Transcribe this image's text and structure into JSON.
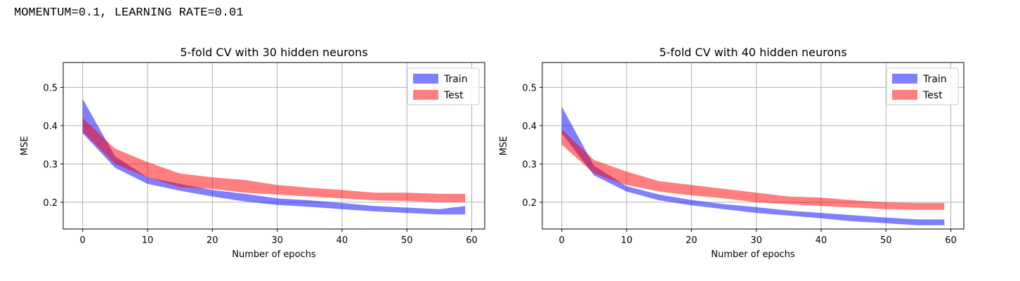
{
  "header": {
    "text": "MOMENTUM=0.1, LEARNING RATE=0.01"
  },
  "chart_data": [
    {
      "type": "area",
      "title": "5-fold CV with 30 hidden neurons",
      "xlabel": "Number of epochs",
      "ylabel": "MSE",
      "xlim": [
        -3,
        62
      ],
      "ylim": [
        0.13,
        0.565
      ],
      "xticks": [
        0,
        10,
        20,
        30,
        40,
        50,
        60
      ],
      "yticks": [
        0.2,
        0.3,
        0.4,
        0.5
      ],
      "ytick_labels": [
        "0.2",
        "0.3",
        "0.4",
        "0.5"
      ],
      "grid": true,
      "legend": "upper right",
      "series": [
        {
          "name": "Train",
          "color": "#0000ff",
          "alpha": 0.5,
          "x": [
            0,
            5,
            10,
            15,
            20,
            25,
            30,
            35,
            40,
            45,
            50,
            55,
            59
          ],
          "lower": [
            0.38,
            0.29,
            0.248,
            0.23,
            0.215,
            0.202,
            0.193,
            0.188,
            0.182,
            0.176,
            0.172,
            0.168,
            0.168
          ],
          "upper": [
            0.47,
            0.32,
            0.265,
            0.248,
            0.232,
            0.222,
            0.21,
            0.205,
            0.198,
            0.19,
            0.186,
            0.182,
            0.19
          ]
        },
        {
          "name": "Test",
          "color": "#ff0000",
          "alpha": 0.5,
          "x": [
            0,
            5,
            10,
            15,
            20,
            25,
            30,
            35,
            40,
            45,
            50,
            55,
            59
          ],
          "lower": [
            0.385,
            0.3,
            0.265,
            0.24,
            0.235,
            0.225,
            0.22,
            0.215,
            0.21,
            0.205,
            0.203,
            0.2,
            0.2
          ],
          "upper": [
            0.42,
            0.34,
            0.305,
            0.275,
            0.265,
            0.258,
            0.245,
            0.238,
            0.232,
            0.225,
            0.225,
            0.222,
            0.222
          ]
        }
      ]
    },
    {
      "type": "area",
      "title": "5-fold CV with 40 hidden neurons",
      "xlabel": "Number of epochs",
      "ylabel": "MSE",
      "xlim": [
        -3,
        62
      ],
      "ylim": [
        0.13,
        0.565
      ],
      "xticks": [
        0,
        10,
        20,
        30,
        40,
        50,
        60
      ],
      "yticks": [
        0.2,
        0.3,
        0.4,
        0.5
      ],
      "ytick_labels": [
        "0.2",
        "0.3",
        "0.4",
        "0.5"
      ],
      "grid": true,
      "legend": "upper right",
      "series": [
        {
          "name": "Train",
          "color": "#0000ff",
          "alpha": 0.5,
          "x": [
            0,
            5,
            10,
            15,
            20,
            25,
            30,
            35,
            40,
            45,
            50,
            55,
            59
          ],
          "lower": [
            0.38,
            0.27,
            0.228,
            0.205,
            0.192,
            0.182,
            0.172,
            0.165,
            0.158,
            0.15,
            0.145,
            0.14,
            0.14
          ],
          "upper": [
            0.45,
            0.295,
            0.242,
            0.22,
            0.206,
            0.195,
            0.187,
            0.178,
            0.172,
            0.166,
            0.16,
            0.155,
            0.155
          ]
        },
        {
          "name": "Test",
          "color": "#ff0000",
          "alpha": 0.5,
          "x": [
            0,
            5,
            10,
            15,
            20,
            25,
            30,
            35,
            40,
            45,
            50,
            55,
            59
          ],
          "lower": [
            0.35,
            0.275,
            0.245,
            0.228,
            0.218,
            0.21,
            0.2,
            0.195,
            0.19,
            0.186,
            0.182,
            0.18,
            0.18
          ],
          "upper": [
            0.39,
            0.31,
            0.28,
            0.255,
            0.245,
            0.235,
            0.225,
            0.215,
            0.212,
            0.205,
            0.2,
            0.198,
            0.198
          ]
        }
      ]
    }
  ]
}
